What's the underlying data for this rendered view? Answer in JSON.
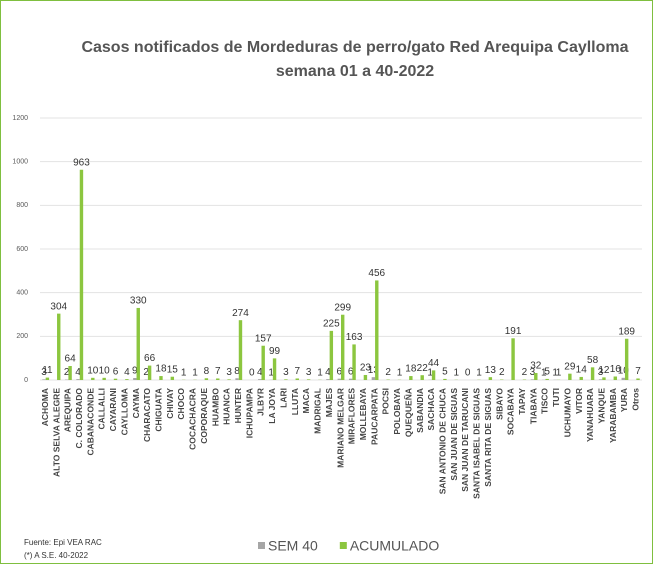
{
  "chart_data": {
    "type": "bar",
    "title": "Casos notificados de Mordeduras de perro/gato Red Arequipa Caylloma",
    "subtitle": "semana 01 a 40-2022",
    "categories": [
      "ACHOMA",
      "ALTO SELVA ALEGRE",
      "AREQUIPA",
      "C. COLORADO",
      "CABANACONDE",
      "CALLALLI",
      "CAYARANI",
      "CAYLLOMA",
      "CAYMA",
      "CHARACATO",
      "CHIGUATA",
      "CHIVAY",
      "CHOCO",
      "COCACHACRA",
      "COPORAQUE",
      "HUAMBO",
      "HUANCA",
      "HUNTER",
      "ICHUPAMPA",
      "JLBYR",
      "LA JOYA",
      "LARI",
      "LLUTA",
      "MACA",
      "MADRIGAL",
      "MAJES",
      "MARIANO MELGAR",
      "MIRAFLORES",
      "MOLLEBAYA",
      "PAUCARPATA",
      "POCSI",
      "POLOBAYA",
      "QUEQUEÑA",
      "SABANDIA",
      "SACHACA",
      "SAN ANTONIO DE CHUCA",
      "SAN JUAN DE SIGUAS",
      "SAN JUAN DE TARUCANI",
      "SANTA ISABEL DE SIGUAS",
      "SANTA RITA DE SIGUAS",
      "SIBAYO",
      "SOCABAYA",
      "TAPAY",
      "TIABAYA",
      "TISCO",
      "TUTI",
      "UCHUMAYO",
      "VITOR",
      "YANAHUARA",
      "YANQUE",
      "YARABAMBA",
      "YURA",
      "Otros"
    ],
    "series": [
      {
        "name": "SEM 40",
        "color": "#a6a6a6",
        "values": [
          3,
          null,
          2,
          4,
          null,
          null,
          null,
          null,
          9,
          2,
          null,
          null,
          null,
          null,
          null,
          null,
          null,
          8,
          null,
          4,
          1,
          null,
          null,
          null,
          null,
          4,
          6,
          6,
          null,
          13,
          null,
          null,
          null,
          null,
          1,
          null,
          null,
          null,
          null,
          null,
          null,
          null,
          null,
          3,
          1,
          1,
          null,
          null,
          null,
          3,
          null,
          10,
          null
        ]
      },
      {
        "name": "ACUMULADO",
        "color": "#8cc63f",
        "values": [
          11,
          304,
          64,
          963,
          10,
          10,
          6,
          4,
          330,
          66,
          18,
          15,
          1,
          1,
          8,
          7,
          3,
          274,
          0,
          157,
          99,
          3,
          7,
          3,
          1,
          225,
          299,
          163,
          23,
          456,
          2,
          1,
          18,
          22,
          44,
          5,
          1,
          0,
          1,
          13,
          2,
          191,
          2,
          32,
          5,
          1,
          29,
          14,
          58,
          12,
          16,
          189,
          7
        ]
      }
    ],
    "ylim": [
      0,
      1200
    ],
    "yticks": [
      0,
      200,
      400,
      600,
      800,
      1000,
      1200
    ],
    "grid": true,
    "legend": "bottom",
    "footnotes": [
      "Fuente: Epi VEA RAC",
      "(*) A S.E. 40-2022"
    ]
  }
}
